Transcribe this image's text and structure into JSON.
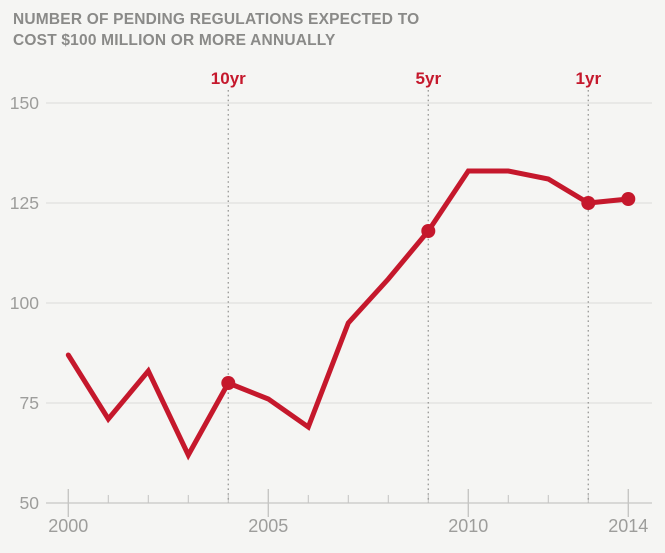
{
  "chart_data": {
    "type": "line",
    "title": "NUMBER OF PENDING REGULATIONS EXPECTED TO COST $100 MILLION OR MORE ANNUALLY",
    "title_line1": "NUMBER OF PENDING REGULATIONS EXPECTED TO",
    "title_line2": "COST $100 MILLION OR MORE ANNUALLY",
    "xlabel": "",
    "ylabel": "",
    "x": [
      2000,
      2001,
      2002,
      2003,
      2004,
      2005,
      2006,
      2007,
      2008,
      2009,
      2010,
      2011,
      2012,
      2013,
      2014
    ],
    "values": [
      87,
      71,
      83,
      62,
      80,
      76,
      69,
      95,
      106,
      118,
      133,
      133,
      131,
      125,
      126
    ],
    "xlim": [
      2000,
      2014
    ],
    "ylim": [
      50,
      150
    ],
    "yticks": [
      50,
      75,
      100,
      125,
      150
    ],
    "ytick_labels": [
      "50",
      "75",
      "100",
      "125",
      "150"
    ],
    "xtick_label_years": [
      2000,
      2005,
      2010,
      2014
    ],
    "xtick_labels": [
      "2000",
      "2005",
      "2010",
      "2014"
    ],
    "annotations": [
      {
        "label": "10yr",
        "year": 2004
      },
      {
        "label": "5yr",
        "year": 2009
      },
      {
        "label": "1yr",
        "year": 2013
      }
    ],
    "marker_years": [
      2004,
      2009,
      2013,
      2014
    ],
    "grid": "horizontal",
    "legend": "none",
    "colors": {
      "line": "#c5182c",
      "marker": "#c5182c",
      "annotation_text": "#c5182c",
      "grid_line": "#dcdcda",
      "axis_line": "#c6c6c4",
      "dotted_line": "#9f9f9d",
      "tick_label": "#9d9d9b",
      "title_text": "#8a8a88",
      "background": "#f5f5f3"
    }
  }
}
